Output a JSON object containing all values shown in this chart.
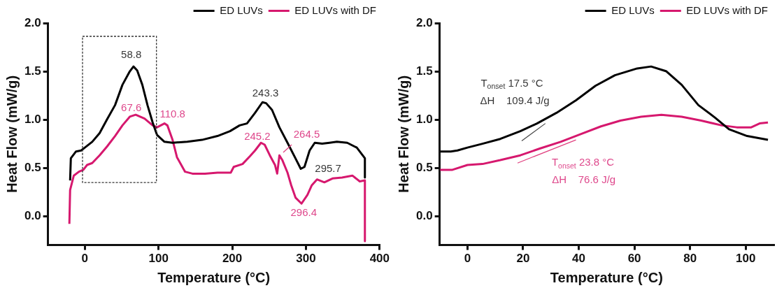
{
  "chart_data": [
    {
      "type": "line",
      "xlabel": "Temperature (°C)",
      "ylabel": "Heat Flow (mW/g)",
      "xlim": [
        -50,
        400
      ],
      "ylim": [
        -0.3,
        2.0
      ],
      "xticks": [
        0,
        100,
        200,
        300,
        400
      ],
      "yticks": [
        {
          "value": 0,
          "label": "0.0"
        },
        {
          "value": 0.5,
          "label": "0.5"
        },
        {
          "value": 1,
          "label": "1.0"
        },
        {
          "value": 1.5,
          "label": "1.5"
        },
        {
          "value": 2,
          "label": "2.0"
        }
      ],
      "grid": false,
      "legend": "top right",
      "marker": "none",
      "line_style": "solid",
      "series": [
        {
          "name": "ED LUVs",
          "color": "#000000",
          "x": [
            -20,
            -19,
            -12,
            -5,
            0,
            10,
            20,
            30,
            41,
            51,
            61,
            66,
            71,
            78,
            85,
            92,
            98,
            108,
            119,
            139,
            159,
            180,
            197,
            210,
            220,
            231,
            241,
            246,
            254,
            264,
            275,
            285,
            293,
            298,
            305,
            312,
            322,
            332,
            342,
            356,
            369,
            380,
            380
          ],
          "values": [
            0.37,
            0.6,
            0.67,
            0.68,
            0.71,
            0.77,
            0.86,
            1.0,
            1.15,
            1.36,
            1.5,
            1.55,
            1.51,
            1.36,
            1.15,
            0.97,
            0.84,
            0.77,
            0.76,
            0.77,
            0.79,
            0.83,
            0.88,
            0.94,
            0.96,
            1.07,
            1.18,
            1.17,
            1.1,
            0.92,
            0.76,
            0.61,
            0.49,
            0.51,
            0.68,
            0.76,
            0.75,
            0.76,
            0.77,
            0.76,
            0.71,
            0.6,
            0.4
          ]
        },
        {
          "name": "ED LUVs with DF",
          "color": "#d6186e",
          "x": [
            -21,
            -20,
            -15,
            -8,
            -2,
            3,
            10,
            20,
            30,
            41,
            51,
            61,
            69,
            81,
            92,
            98,
            108,
            112,
            119,
            125,
            136,
            146,
            163,
            180,
            198,
            202,
            214,
            224,
            231,
            239,
            244,
            251,
            258,
            261,
            264,
            268,
            275,
            280,
            286,
            294,
            302,
            308,
            315,
            325,
            336,
            349,
            363,
            373,
            380,
            380
          ],
          "values": [
            -0.08,
            0.27,
            0.42,
            0.46,
            0.48,
            0.53,
            0.55,
            0.63,
            0.72,
            0.83,
            0.94,
            1.03,
            1.05,
            1.01,
            0.94,
            0.92,
            0.96,
            0.94,
            0.79,
            0.61,
            0.46,
            0.44,
            0.44,
            0.45,
            0.45,
            0.51,
            0.54,
            0.62,
            0.68,
            0.76,
            0.74,
            0.63,
            0.53,
            0.44,
            0.63,
            0.58,
            0.45,
            0.32,
            0.19,
            0.13,
            0.22,
            0.32,
            0.38,
            0.35,
            0.39,
            0.4,
            0.42,
            0.36,
            0.37,
            -0.26
          ]
        }
      ],
      "annotations": [
        "58.8",
        "67.6",
        "110.8",
        "243.3",
        "245.2",
        "264.5",
        "295.7",
        "296.4"
      ]
    },
    {
      "type": "line",
      "xlabel": "Temperature (°C)",
      "ylabel": "Heat Flow (mW/g)",
      "xlim": [
        -10,
        110
      ],
      "ylim": [
        -0.3,
        2.0
      ],
      "xticks": [
        0,
        20,
        40,
        60,
        80,
        100
      ],
      "yticks": [
        {
          "value": 0,
          "label": "0.0"
        },
        {
          "value": 0.5,
          "label": "0.5"
        },
        {
          "value": 1,
          "label": "1.0"
        },
        {
          "value": 1.5,
          "label": "1.5"
        },
        {
          "value": 2,
          "label": "2.0"
        }
      ],
      "grid": false,
      "legend": "top right",
      "marker": "none",
      "line_style": "solid",
      "series": [
        {
          "name": "ED LUVs",
          "color": "#000000",
          "x": [
            -9.8,
            -6,
            -3.6,
            0,
            5.4,
            11.8,
            19,
            25,
            32,
            39,
            46,
            53,
            61,
            66,
            71.5,
            77,
            83,
            89,
            94,
            100.5,
            108
          ],
          "values": [
            0.67,
            0.67,
            0.68,
            0.71,
            0.75,
            0.8,
            0.88,
            0.96,
            1.07,
            1.2,
            1.35,
            1.46,
            1.53,
            1.55,
            1.5,
            1.36,
            1.15,
            1.02,
            0.9,
            0.83,
            0.79
          ]
        },
        {
          "name": "ED LUVs with DF",
          "color": "#d6186e",
          "x": [
            -9.8,
            -5.4,
            0,
            5.4,
            11.8,
            19,
            26,
            33.5,
            40.7,
            48,
            55,
            62.4,
            69.7,
            77,
            84,
            91.4,
            96.8,
            102,
            105,
            108
          ],
          "values": [
            0.48,
            0.48,
            0.53,
            0.54,
            0.58,
            0.63,
            0.7,
            0.77,
            0.85,
            0.93,
            0.99,
            1.03,
            1.05,
            1.03,
            0.99,
            0.94,
            0.92,
            0.92,
            0.96,
            0.97
          ]
        },
        {
          "type": "line",
          "color": "#444444",
          "x": [
            19.5,
            28
          ],
          "values": [
            0.78,
            0.96
          ]
        },
        {
          "type": "line",
          "color": "#e0407f",
          "x": [
            18,
            39
          ],
          "values": [
            0.55,
            0.79
          ]
        }
      ],
      "annotations": [
        "T$_{onset}$ 17.5 °C",
        "ΔH    109.4 J/g",
        "T$_{onset}$ 23.8 °C",
        "ΔH    76.6 J/g"
      ]
    }
  ]
}
